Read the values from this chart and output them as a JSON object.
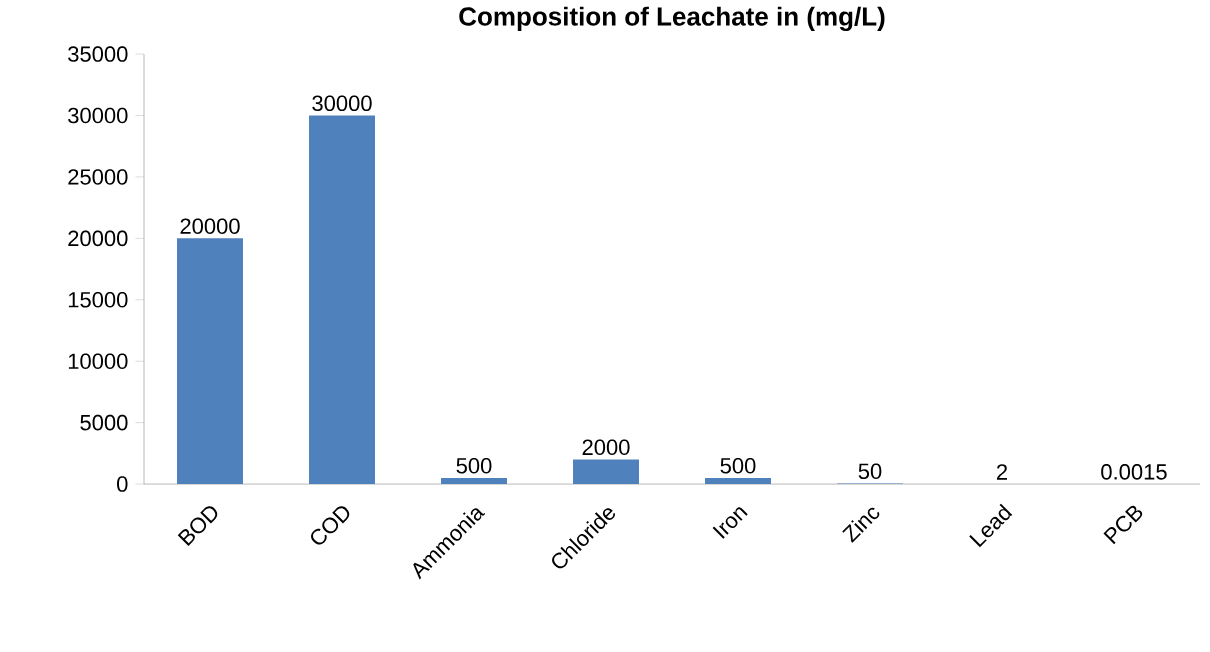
{
  "chart_data": {
    "type": "bar",
    "title": "Composition of Leachate in (mg/L)",
    "categories": [
      "BOD",
      "COD",
      "Ammonia",
      "Chloride",
      "Iron",
      "Zinc",
      "Lead",
      "PCB"
    ],
    "values": [
      20000,
      30000,
      500,
      2000,
      500,
      50,
      2,
      0.0015
    ],
    "color": "#4f81bd",
    "ylim": [
      0,
      35000
    ],
    "yticks": [
      0,
      5000,
      10000,
      15000,
      20000,
      25000,
      30000,
      35000
    ],
    "data_labels": true
  }
}
